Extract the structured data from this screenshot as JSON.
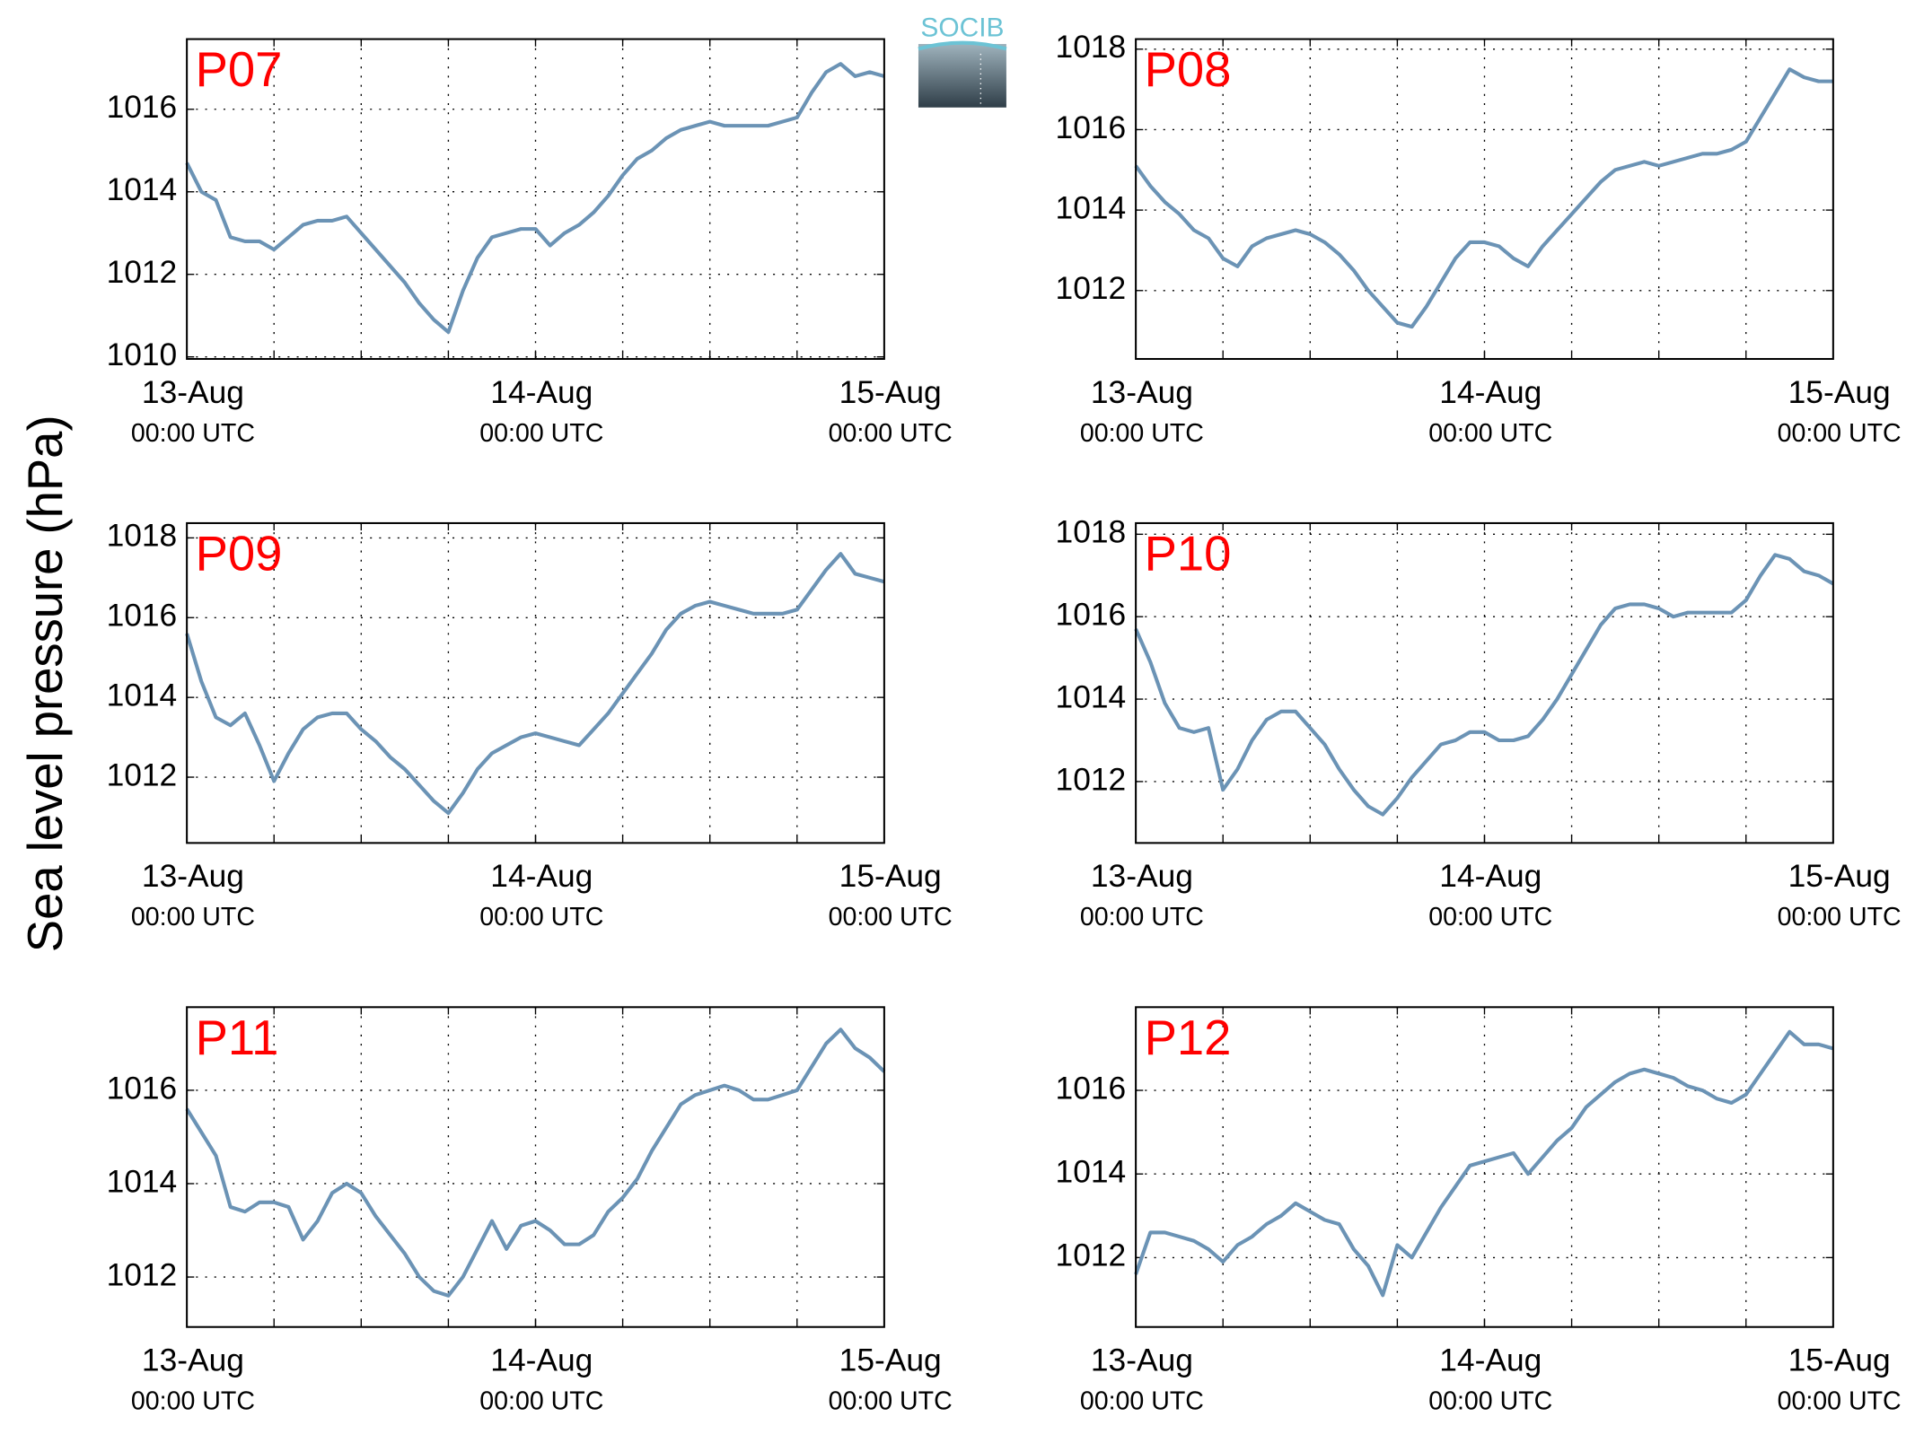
{
  "ylabel": "Sea level pressure (hPa)",
  "logo": "SOCIB",
  "chart_data": [
    {
      "type": "line",
      "title": "P07",
      "title_color": "#ff0000",
      "x": [
        0,
        1,
        2,
        3,
        4,
        5,
        6,
        7,
        8,
        9,
        10,
        11,
        12,
        13,
        14,
        15,
        16,
        17,
        18,
        19,
        20,
        21,
        22,
        23,
        24,
        25,
        26,
        27,
        28,
        29,
        30,
        31,
        32,
        33,
        34,
        35,
        36,
        37,
        38,
        39,
        40,
        41,
        42,
        43,
        44,
        45,
        46,
        47,
        48
      ],
      "series": [
        {
          "color": "#6b93b5",
          "values": [
            1014.7,
            1014.0,
            1013.8,
            1012.9,
            1012.8,
            1012.8,
            1012.6,
            1012.9,
            1013.2,
            1013.3,
            1013.3,
            1013.4,
            1013.0,
            1012.6,
            1012.2,
            1011.8,
            1011.3,
            1010.9,
            1010.6,
            1011.6,
            1012.4,
            1012.9,
            1013.0,
            1013.1,
            1013.1,
            1012.7,
            1013.0,
            1013.2,
            1013.5,
            1013.9,
            1014.4,
            1014.8,
            1015.0,
            1015.3,
            1015.5,
            1015.6,
            1015.7,
            1015.6,
            1015.6,
            1015.6,
            1015.6,
            1015.7,
            1015.8,
            1016.4,
            1016.9,
            1017.1,
            1016.8,
            1016.9,
            1016.8
          ]
        }
      ],
      "xlim": [
        0,
        48
      ],
      "ylim": [
        1009.95,
        1017.7
      ],
      "yticks": [
        1010,
        1012,
        1014,
        1016
      ],
      "xticks": [
        {
          "value": 0,
          "label": "13-Aug",
          "sublabel": "00:00 UTC"
        },
        {
          "value": 24,
          "label": "14-Aug",
          "sublabel": "00:00 UTC"
        },
        {
          "value": 48,
          "label": "15-Aug",
          "sublabel": "00:00 UTC"
        }
      ],
      "xgrid": [
        6,
        12,
        18,
        24,
        30,
        36,
        42
      ],
      "grid": true
    },
    {
      "type": "line",
      "title": "P08",
      "title_color": "#ff0000",
      "x": [
        0,
        1,
        2,
        3,
        4,
        5,
        6,
        7,
        8,
        9,
        10,
        11,
        12,
        13,
        14,
        15,
        16,
        17,
        18,
        19,
        20,
        21,
        22,
        23,
        24,
        25,
        26,
        27,
        28,
        29,
        30,
        31,
        32,
        33,
        34,
        35,
        36,
        37,
        38,
        39,
        40,
        41,
        42,
        43,
        44,
        45,
        46,
        47,
        48
      ],
      "series": [
        {
          "color": "#6b93b5",
          "values": [
            1015.1,
            1014.6,
            1014.2,
            1013.9,
            1013.5,
            1013.3,
            1012.8,
            1012.6,
            1013.1,
            1013.3,
            1013.4,
            1013.5,
            1013.4,
            1013.2,
            1012.9,
            1012.5,
            1012.0,
            1011.6,
            1011.2,
            1011.1,
            1011.6,
            1012.2,
            1012.8,
            1013.2,
            1013.2,
            1013.1,
            1012.8,
            1012.6,
            1013.1,
            1013.5,
            1013.9,
            1014.3,
            1014.7,
            1015.0,
            1015.1,
            1015.2,
            1015.1,
            1015.2,
            1015.3,
            1015.4,
            1015.4,
            1015.5,
            1015.7,
            1016.3,
            1016.9,
            1017.5,
            1017.3,
            1017.2,
            1017.2
          ]
        }
      ],
      "xlim": [
        0,
        48
      ],
      "ylim": [
        1010.3,
        1018.25
      ],
      "yticks": [
        1012,
        1014,
        1016,
        1018
      ],
      "xticks": [
        {
          "value": 0,
          "label": "13-Aug",
          "sublabel": "00:00 UTC"
        },
        {
          "value": 24,
          "label": "14-Aug",
          "sublabel": "00:00 UTC"
        },
        {
          "value": 48,
          "label": "15-Aug",
          "sublabel": "00:00 UTC"
        }
      ],
      "xgrid": [
        6,
        12,
        18,
        24,
        30,
        36,
        42
      ],
      "grid": true
    },
    {
      "type": "line",
      "title": "P09",
      "title_color": "#ff0000",
      "x": [
        0,
        1,
        2,
        3,
        4,
        5,
        6,
        7,
        8,
        9,
        10,
        11,
        12,
        13,
        14,
        15,
        16,
        17,
        18,
        19,
        20,
        21,
        22,
        23,
        24,
        25,
        26,
        27,
        28,
        29,
        30,
        31,
        32,
        33,
        34,
        35,
        36,
        37,
        38,
        39,
        40,
        41,
        42,
        43,
        44,
        45,
        46,
        47,
        48
      ],
      "series": [
        {
          "color": "#6b93b5",
          "values": [
            1015.6,
            1014.4,
            1013.5,
            1013.3,
            1013.6,
            1012.8,
            1011.9,
            1012.6,
            1013.2,
            1013.5,
            1013.6,
            1013.6,
            1013.2,
            1012.9,
            1012.5,
            1012.2,
            1011.8,
            1011.4,
            1011.1,
            1011.6,
            1012.2,
            1012.6,
            1012.8,
            1013.0,
            1013.1,
            1013.0,
            1012.9,
            1012.8,
            1013.2,
            1013.6,
            1014.1,
            1014.6,
            1015.1,
            1015.7,
            1016.1,
            1016.3,
            1016.4,
            1016.3,
            1016.2,
            1016.1,
            1016.1,
            1016.1,
            1016.2,
            1016.7,
            1017.2,
            1017.6,
            1017.1,
            1017.0,
            1016.9
          ]
        }
      ],
      "xlim": [
        0,
        48
      ],
      "ylim": [
        1010.35,
        1018.37
      ],
      "yticks": [
        1012,
        1014,
        1016,
        1018
      ],
      "xticks": [
        {
          "value": 0,
          "label": "13-Aug",
          "sublabel": "00:00 UTC"
        },
        {
          "value": 24,
          "label": "14-Aug",
          "sublabel": "00:00 UTC"
        },
        {
          "value": 48,
          "label": "15-Aug",
          "sublabel": "00:00 UTC"
        }
      ],
      "xgrid": [
        6,
        12,
        18,
        24,
        30,
        36,
        42
      ],
      "grid": true
    },
    {
      "type": "line",
      "title": "P10",
      "title_color": "#ff0000",
      "x": [
        0,
        1,
        2,
        3,
        4,
        5,
        6,
        7,
        8,
        9,
        10,
        11,
        12,
        13,
        14,
        15,
        16,
        17,
        18,
        19,
        20,
        21,
        22,
        23,
        24,
        25,
        26,
        27,
        28,
        29,
        30,
        31,
        32,
        33,
        34,
        35,
        36,
        37,
        38,
        39,
        40,
        41,
        42,
        43,
        44,
        45,
        46,
        47,
        48
      ],
      "series": [
        {
          "color": "#6b93b5",
          "values": [
            1015.7,
            1014.9,
            1013.9,
            1013.3,
            1013.2,
            1013.3,
            1011.8,
            1012.3,
            1013.0,
            1013.5,
            1013.7,
            1013.7,
            1013.3,
            1012.9,
            1012.3,
            1011.8,
            1011.4,
            1011.2,
            1011.6,
            1012.1,
            1012.5,
            1012.9,
            1013.0,
            1013.2,
            1013.2,
            1013.0,
            1013.0,
            1013.1,
            1013.5,
            1014.0,
            1014.6,
            1015.2,
            1015.8,
            1016.2,
            1016.3,
            1016.3,
            1016.2,
            1016.0,
            1016.1,
            1016.1,
            1016.1,
            1016.1,
            1016.4,
            1017.0,
            1017.5,
            1017.4,
            1017.1,
            1017.0,
            1016.8
          ]
        }
      ],
      "xlim": [
        0,
        48
      ],
      "ylim": [
        1010.51,
        1018.27
      ],
      "yticks": [
        1012,
        1014,
        1016,
        1018
      ],
      "xticks": [
        {
          "value": 0,
          "label": "13-Aug",
          "sublabel": "00:00 UTC"
        },
        {
          "value": 24,
          "label": "14-Aug",
          "sublabel": "00:00 UTC"
        },
        {
          "value": 48,
          "label": "15-Aug",
          "sublabel": "00:00 UTC"
        }
      ],
      "xgrid": [
        6,
        12,
        18,
        24,
        30,
        36,
        42
      ],
      "grid": true
    },
    {
      "type": "line",
      "title": "P11",
      "title_color": "#ff0000",
      "x": [
        0,
        1,
        2,
        3,
        4,
        5,
        6,
        7,
        8,
        9,
        10,
        11,
        12,
        13,
        14,
        15,
        16,
        17,
        18,
        19,
        20,
        21,
        22,
        23,
        24,
        25,
        26,
        27,
        28,
        29,
        30,
        31,
        32,
        33,
        34,
        35,
        36,
        37,
        38,
        39,
        40,
        41,
        42,
        43,
        44,
        45,
        46,
        47,
        48
      ],
      "series": [
        {
          "color": "#6b93b5",
          "values": [
            1015.6,
            1015.1,
            1014.6,
            1013.5,
            1013.4,
            1013.6,
            1013.6,
            1013.5,
            1012.8,
            1013.2,
            1013.8,
            1014.0,
            1013.8,
            1013.3,
            1012.9,
            1012.5,
            1012.0,
            1011.7,
            1011.6,
            1012.0,
            1012.6,
            1013.2,
            1012.6,
            1013.1,
            1013.2,
            1013.0,
            1012.7,
            1012.7,
            1012.9,
            1013.4,
            1013.7,
            1014.1,
            1014.7,
            1015.2,
            1015.7,
            1015.9,
            1016.0,
            1016.1,
            1016.0,
            1015.8,
            1015.8,
            1015.9,
            1016.0,
            1016.5,
            1017.0,
            1017.3,
            1016.9,
            1016.7,
            1016.4
          ]
        }
      ],
      "xlim": [
        0,
        48
      ],
      "ylim": [
        1010.93,
        1017.78
      ],
      "yticks": [
        1012,
        1014,
        1016
      ],
      "xticks": [
        {
          "value": 0,
          "label": "13-Aug",
          "sublabel": "00:00 UTC"
        },
        {
          "value": 24,
          "label": "14-Aug",
          "sublabel": "00:00 UTC"
        },
        {
          "value": 48,
          "label": "15-Aug",
          "sublabel": "00:00 UTC"
        }
      ],
      "xgrid": [
        6,
        12,
        18,
        24,
        30,
        36,
        42
      ],
      "grid": true
    },
    {
      "type": "line",
      "title": "P12",
      "title_color": "#ff0000",
      "x": [
        0,
        1,
        2,
        3,
        4,
        5,
        6,
        7,
        8,
        9,
        10,
        11,
        12,
        13,
        14,
        15,
        16,
        17,
        18,
        19,
        20,
        21,
        22,
        23,
        24,
        25,
        26,
        27,
        28,
        29,
        30,
        31,
        32,
        33,
        34,
        35,
        36,
        37,
        38,
        39,
        40,
        41,
        42,
        43,
        44,
        45,
        46,
        47,
        48
      ],
      "series": [
        {
          "color": "#6b93b5",
          "values": [
            1011.6,
            1012.6,
            1012.6,
            1012.5,
            1012.4,
            1012.2,
            1011.9,
            1012.3,
            1012.5,
            1012.8,
            1013.0,
            1013.3,
            1013.1,
            1012.9,
            1012.8,
            1012.2,
            1011.8,
            1011.1,
            1012.3,
            1012.0,
            1012.6,
            1013.2,
            1013.7,
            1014.2,
            1014.3,
            1014.4,
            1014.5,
            1014.0,
            1014.4,
            1014.8,
            1015.1,
            1015.6,
            1015.9,
            1016.2,
            1016.4,
            1016.5,
            1016.4,
            1016.3,
            1016.1,
            1016.0,
            1015.8,
            1015.7,
            1015.9,
            1016.4,
            1016.9,
            1017.4,
            1017.1,
            1017.1,
            1017.0
          ]
        }
      ],
      "xlim": [
        0,
        48
      ],
      "ylim": [
        1010.34,
        1017.99
      ],
      "yticks": [
        1012,
        1014,
        1016
      ],
      "xticks": [
        {
          "value": 0,
          "label": "13-Aug",
          "sublabel": "00:00 UTC"
        },
        {
          "value": 24,
          "label": "14-Aug",
          "sublabel": "00:00 UTC"
        },
        {
          "value": 48,
          "label": "15-Aug",
          "sublabel": "00:00 UTC"
        }
      ],
      "xgrid": [
        6,
        12,
        18,
        24,
        30,
        36,
        42
      ],
      "grid": true
    }
  ]
}
